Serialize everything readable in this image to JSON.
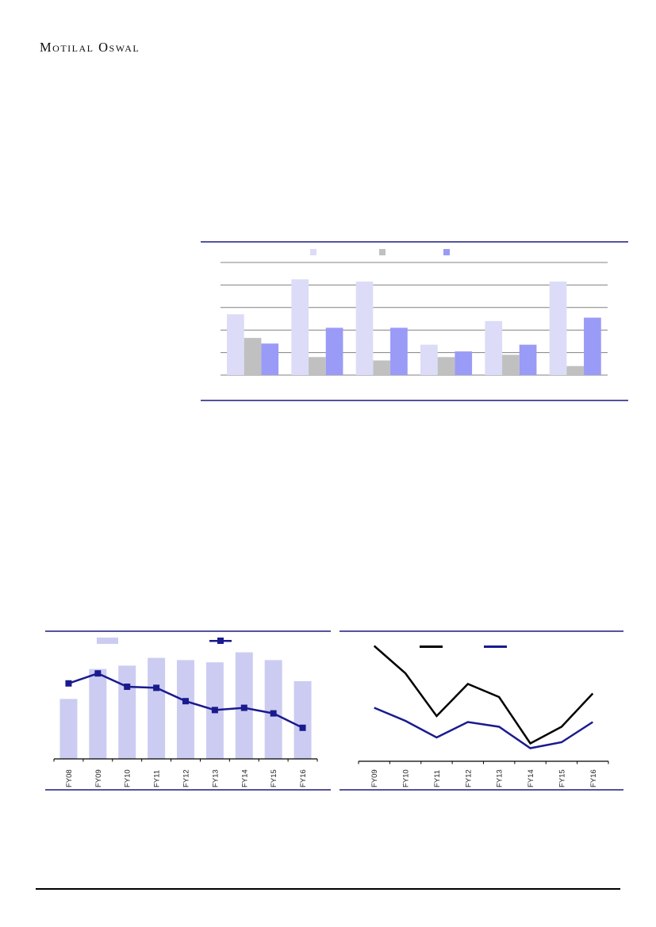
{
  "page": {
    "logo_text": "Motilal Oswal"
  },
  "colors": {
    "chart_border": "#54549e",
    "gridline": "#808080",
    "axis_line": "#000000",
    "series_light": "#dcdcf8",
    "series_gray": "#c0c0c0",
    "series_purple": "#9a9af7",
    "combo_bar": "#ccccf2",
    "navy_line": "#1a1a8f",
    "black_line": "#000000",
    "label_text": "#262626",
    "footer_rule": "#000000"
  },
  "chart_data": [
    {
      "id": "grouped-bar",
      "type": "bar",
      "title": "",
      "note": "3-series grouped bar chart; legend shows colour swatches only, no visible text; no visible axis labels",
      "categories": [
        "",
        "",
        "",
        "",
        "",
        ""
      ],
      "series": [
        {
          "name": "light-lavender-series",
          "color_key": "series_light",
          "values": [
            54,
            85,
            83,
            27,
            48,
            83
          ]
        },
        {
          "name": "gray-series",
          "color_key": "series_gray",
          "values": [
            33,
            16,
            13,
            16,
            18,
            8
          ]
        },
        {
          "name": "purple-series",
          "color_key": "series_purple",
          "values": [
            28,
            42,
            42,
            21,
            27,
            51
          ]
        }
      ],
      "ylim": [
        0,
        100
      ],
      "grid": true,
      "gridline_step": 20,
      "legend_position": "top",
      "legend_swatches": [
        {
          "shape": "square",
          "color_key": "series_light",
          "label": ""
        },
        {
          "shape": "square",
          "color_key": "series_gray",
          "label": ""
        },
        {
          "shape": "square",
          "color_key": "series_purple",
          "label": ""
        }
      ]
    },
    {
      "id": "bar-line-combo",
      "type": "bar",
      "title": "",
      "note": "lavender bars with navy square-marker line; legend swatches only, no visible text; y-axis unlabeled",
      "categories": [
        "FY08",
        "FY09",
        "FY10",
        "FY11",
        "FY12",
        "FY13",
        "FY14",
        "FY15",
        "FY16"
      ],
      "series": [
        {
          "name": "bar-series",
          "kind": "bar",
          "color_key": "combo_bar",
          "values": [
            54,
            81,
            84,
            91,
            89,
            87,
            96,
            89,
            70
          ]
        },
        {
          "name": "line-series",
          "kind": "line",
          "color_key": "navy_line",
          "marker": "square",
          "values": [
            68,
            77,
            65,
            64,
            52,
            44,
            46,
            41,
            28
          ]
        }
      ],
      "ylim": [
        0,
        100
      ],
      "grid": false,
      "legend_position": "top",
      "legend_swatches": [
        {
          "shape": "bar",
          "color_key": "combo_bar",
          "label": ""
        },
        {
          "shape": "line-marker",
          "color_key": "navy_line",
          "label": ""
        }
      ]
    },
    {
      "id": "dual-line",
      "type": "line",
      "title": "",
      "note": "black line and navy line; legend swatches only, no visible text; y-axis unlabeled",
      "categories": [
        "FY09",
        "FY10",
        "FY11",
        "FY12",
        "FY13",
        "FY14",
        "FY15",
        "FY16"
      ],
      "series": [
        {
          "name": "black-series",
          "color_key": "black_line",
          "values": [
            97,
            74,
            38,
            65,
            54,
            15,
            29,
            57
          ]
        },
        {
          "name": "navy-series",
          "color_key": "navy_line",
          "values": [
            45,
            34,
            20,
            33,
            29,
            11,
            16,
            33
          ]
        }
      ],
      "ylim": [
        0,
        100
      ],
      "grid": false,
      "legend_position": "top",
      "legend_swatches": [
        {
          "shape": "line",
          "color_key": "black_line",
          "label": ""
        },
        {
          "shape": "line",
          "color_key": "navy_line",
          "label": ""
        }
      ]
    }
  ]
}
